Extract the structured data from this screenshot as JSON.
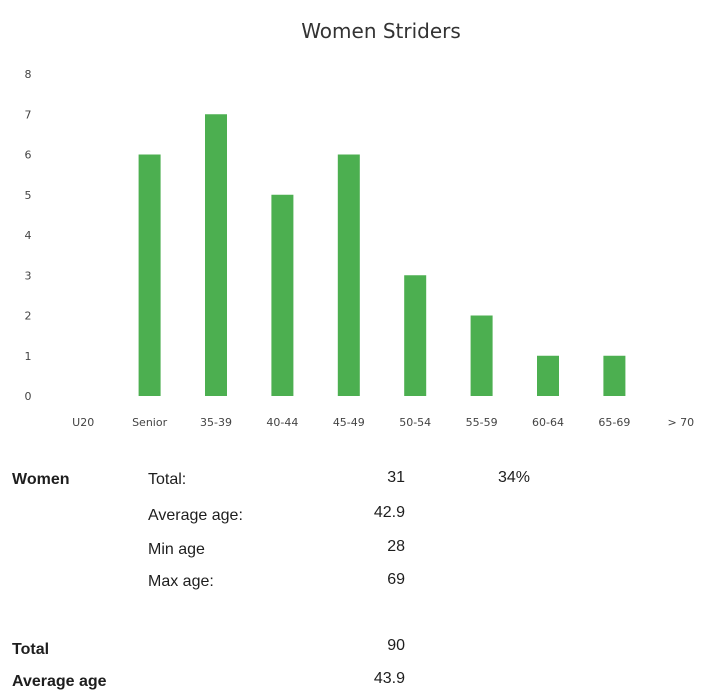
{
  "chart_data": {
    "type": "bar",
    "title": "Women Striders",
    "categories": [
      "U20",
      "Senior",
      "35-39",
      "40-44",
      "45-49",
      "50-54",
      "55-59",
      "60-64",
      "65-69",
      "> 70"
    ],
    "values": [
      0,
      6,
      7,
      5,
      6,
      3,
      2,
      1,
      1,
      0
    ],
    "ylim": [
      0,
      8
    ],
    "yticks": [
      0,
      1,
      2,
      3,
      4,
      5,
      6,
      7,
      8
    ],
    "xlabel": "",
    "ylabel": "",
    "bar_color": "#4caf50",
    "grid": false
  },
  "stats": {
    "women_label": "Women",
    "total_label": "Total:",
    "total_value": "31",
    "percent": "34%",
    "avg_label": "Average age:",
    "avg_value": "42.9",
    "min_label": "Min age",
    "min_value": "28",
    "max_label": "Max age:",
    "max_value": "69",
    "overall_total_label": "Total",
    "overall_total_value": "90",
    "overall_avg_label": "Average age",
    "overall_avg_value": "43.9"
  }
}
